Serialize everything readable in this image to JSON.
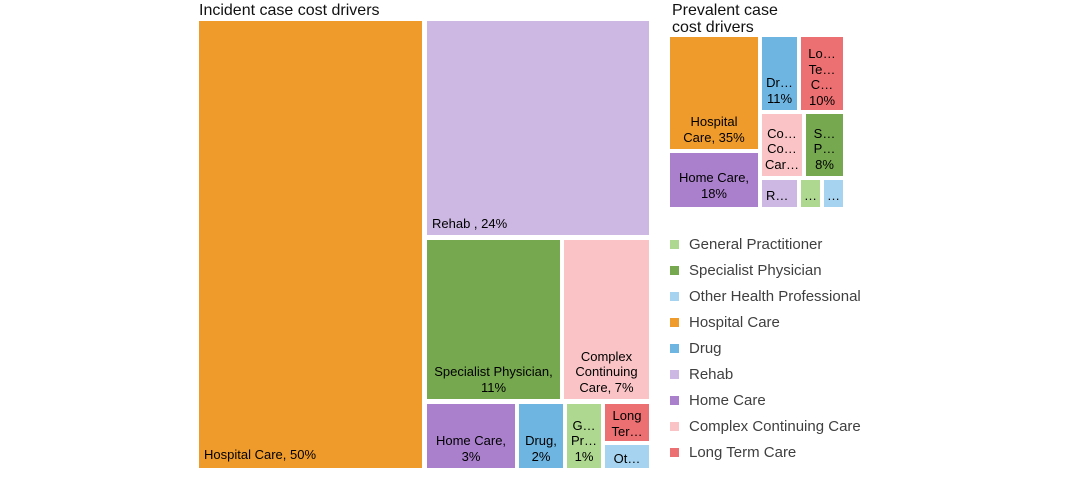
{
  "figure": {
    "incident_title": "Incident case cost drivers",
    "prevalent_title": "Prevalent case\ncost drivers"
  },
  "colors": {
    "general_practitioner": "#AED88F",
    "specialist_physician": "#76A84F",
    "other_health_professional": "#A6D3EF",
    "hospital_care": "#EF9B2B",
    "drug": "#6FB5E2",
    "rehab": "#CCB8E2",
    "home_care": "#AA80CD",
    "complex_continuing_care": "#FAC4C6",
    "long_term_care": "#EC6F71"
  },
  "incident": {
    "labels": {
      "hospital_care": "Hospital Care, 50%",
      "rehab": "Rehab , 24%",
      "specialist_physician": "Specialist Physician,\n11%",
      "complex_continuing_care": "Complex\nContinuing\nCare, 7%",
      "home_care": "Home Care,\n3%",
      "drug": "Drug,\n2%",
      "general_practitioner": "G…\nPr…\n1%",
      "long_term_care": "Long\nTer…",
      "other_health_professional": "Ot…"
    }
  },
  "prevalent": {
    "labels": {
      "hospital_care": "Hospital\nCare, 35%",
      "home_care": "Home Care,\n18%",
      "drug": "Dr…\n11%",
      "long_term_care": "Lo…\nTe…\nC…\n10%",
      "complex_continuing_care": "Co…\nCo…\nCar…",
      "specialist_physician": "S…\nP…\n8%",
      "rehab": "R…",
      "general_practitioner": "…",
      "other_health_professional": "…"
    }
  },
  "legend": {
    "items": [
      {
        "label": "General Practitioner",
        "color": "#AED88F"
      },
      {
        "label": "Specialist Physician",
        "color": "#76A84F"
      },
      {
        "label": "Other Health Professional",
        "color": "#A6D3EF"
      },
      {
        "label": "Hospital Care",
        "color": "#EF9B2B"
      },
      {
        "label": "Drug",
        "color": "#6FB5E2"
      },
      {
        "label": "Rehab",
        "color": "#CCB8E2"
      },
      {
        "label": "Home Care",
        "color": "#AA80CD"
      },
      {
        "label": "Complex Continuing Care",
        "color": "#FAC4C6"
      },
      {
        "label": "Long Term Care",
        "color": "#EC6F71"
      }
    ]
  },
  "chart_data": [
    {
      "type": "treemap",
      "title": "Incident case cost drivers",
      "unit": "percent",
      "items": [
        {
          "label": "Hospital Care",
          "value": 50
        },
        {
          "label": "Rehab",
          "value": 24
        },
        {
          "label": "Specialist Physician",
          "value": 11
        },
        {
          "label": "Complex Continuing Care",
          "value": 7
        },
        {
          "label": "Home Care",
          "value": 3
        },
        {
          "label": "Drug",
          "value": 2
        },
        {
          "label": "General Practitioner",
          "value": 1
        },
        {
          "label": "Long Term Care",
          "value": 1,
          "estimated": true
        },
        {
          "label": "Other Health Professional",
          "value": 1,
          "estimated": true
        }
      ]
    },
    {
      "type": "treemap",
      "title": "Prevalent case cost drivers",
      "unit": "percent",
      "items": [
        {
          "label": "Hospital Care",
          "value": 35
        },
        {
          "label": "Home Care",
          "value": 18
        },
        {
          "label": "Drug",
          "value": 11
        },
        {
          "label": "Long Term Care",
          "value": 10
        },
        {
          "label": "Complex Continuing Care",
          "value": 9,
          "estimated": true
        },
        {
          "label": "Specialist Physician",
          "value": 8
        },
        {
          "label": "Rehab",
          "value": 3,
          "estimated": true
        },
        {
          "label": "General Practitioner",
          "value": 2,
          "estimated": true
        },
        {
          "label": "Other Health Professional",
          "value": 2,
          "estimated": true
        }
      ]
    }
  ],
  "layout_hints": {
    "legend_position": "right",
    "grid": false
  }
}
